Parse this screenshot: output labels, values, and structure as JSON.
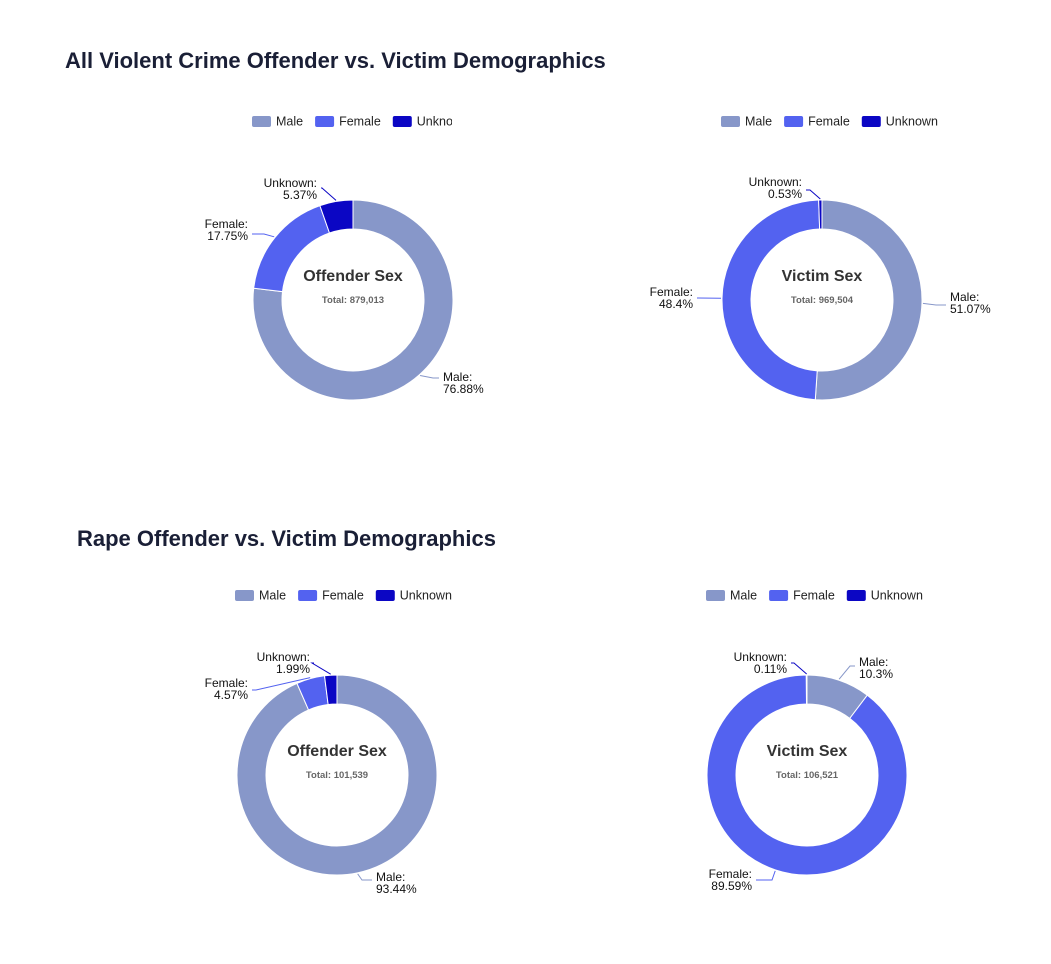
{
  "sections": [
    {
      "title": "All Violent Crime Offender vs. Victim Demographics"
    },
    {
      "title": "Rape Offender vs. Victim Demographics"
    }
  ],
  "colors": {
    "Male": "#8797c9",
    "Female": "#5362f0",
    "Unknown": "#0b06c4"
  },
  "chart_data": [
    {
      "type": "pie",
      "donut": true,
      "title": "Offender Sex",
      "subtitle": "Total: 879,013",
      "legend": [
        "Male",
        "Female",
        "Unknown"
      ],
      "legend_visible_text": [
        "Male",
        "Female",
        "Unknowr"
      ],
      "slices": [
        {
          "label": "Male",
          "value": 76.88,
          "text": "76.88%"
        },
        {
          "label": "Female",
          "value": 17.75,
          "text": "17.75%"
        },
        {
          "label": "Unknown",
          "value": 5.37,
          "text": "5.37%"
        }
      ]
    },
    {
      "type": "pie",
      "donut": true,
      "title": "Victim Sex",
      "subtitle": "Total: 969,504",
      "legend": [
        "Male",
        "Female",
        "Unknown"
      ],
      "slices": [
        {
          "label": "Male",
          "value": 51.07,
          "text": "51.07%"
        },
        {
          "label": "Female",
          "value": 48.4,
          "text": "48.4%"
        },
        {
          "label": "Unknown",
          "value": 0.53,
          "text": "0.53%"
        }
      ]
    },
    {
      "type": "pie",
      "donut": true,
      "title": "Offender Sex",
      "subtitle": "Total: 101,539",
      "legend": [
        "Male",
        "Female",
        "Unknown"
      ],
      "slices": [
        {
          "label": "Male",
          "value": 93.44,
          "text": "93.44%"
        },
        {
          "label": "Female",
          "value": 4.57,
          "text": "4.57%"
        },
        {
          "label": "Unknown",
          "value": 1.99,
          "text": "1.99%"
        }
      ]
    },
    {
      "type": "pie",
      "donut": true,
      "title": "Victim Sex",
      "subtitle": "Total: 106,521",
      "legend": [
        "Male",
        "Female",
        "Unknown"
      ],
      "slices": [
        {
          "label": "Male",
          "value": 10.3,
          "text": "10.3%"
        },
        {
          "label": "Female",
          "value": 89.59,
          "text": "89.59%"
        },
        {
          "label": "Unknown",
          "value": 0.11,
          "text": "0.11%"
        }
      ]
    }
  ]
}
